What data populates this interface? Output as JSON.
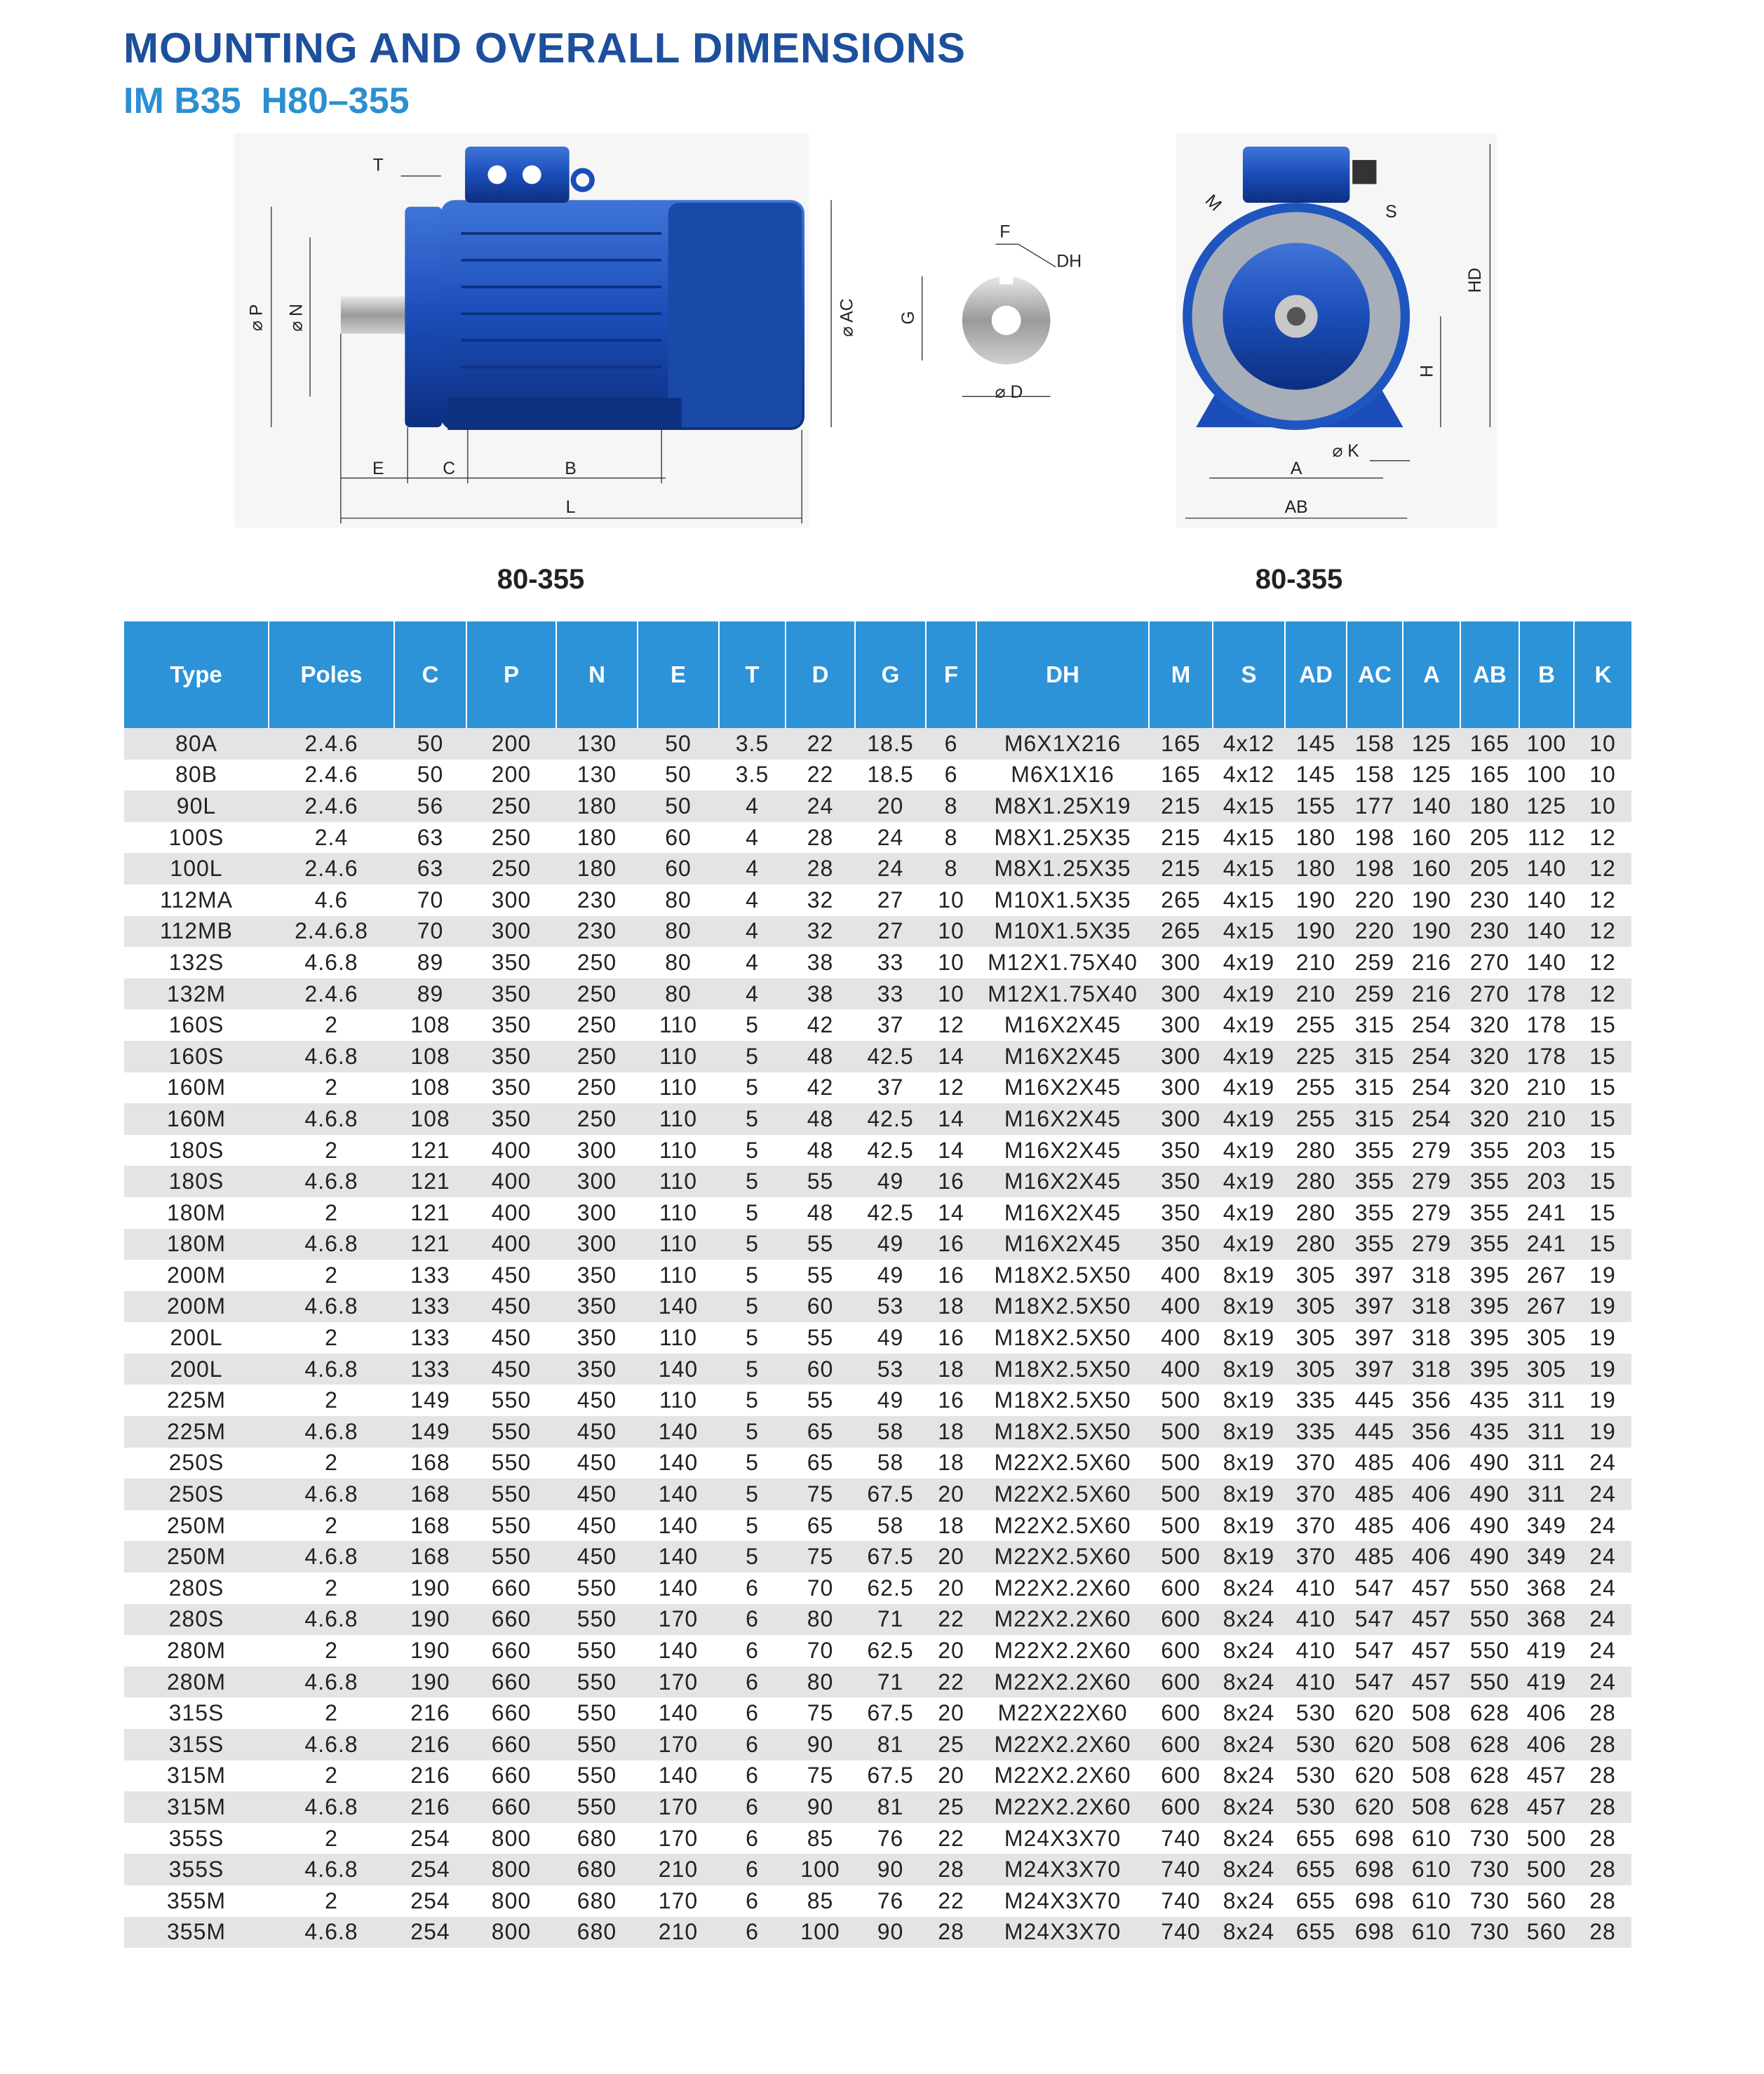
{
  "header": {
    "title": "MOUNTING AND OVERALL DIMENSIONS",
    "subtitle": "IM B35  H80–355"
  },
  "diagrams": {
    "side_view": {
      "labels": [
        "T",
        "⌀ P",
        "⌀ N",
        "E",
        "C",
        "B",
        "L",
        "⌀ AC"
      ],
      "caption": "80-355"
    },
    "shaft_section": {
      "labels": [
        "F",
        "DH",
        "G",
        "⌀ D"
      ]
    },
    "front_view": {
      "labels": [
        "M",
        "S",
        "HD",
        "H",
        "⌀ K",
        "A",
        "AB"
      ],
      "caption": "80-355"
    }
  },
  "table": {
    "columns": [
      "Type",
      "Poles",
      "C",
      "P",
      "N",
      "E",
      "T",
      "D",
      "G",
      "F",
      "DH",
      "M",
      "S",
      "AD",
      "AC",
      "A",
      "AB",
      "B",
      "K"
    ],
    "rows": [
      [
        "80A",
        "2.4.6",
        "50",
        "200",
        "130",
        "50",
        "3.5",
        "22",
        "18.5",
        "6",
        "M6X1X216",
        "165",
        "4x12",
        "145",
        "158",
        "125",
        "165",
        "100",
        "10"
      ],
      [
        "80B",
        "2.4.6",
        "50",
        "200",
        "130",
        "50",
        "3.5",
        "22",
        "18.5",
        "6",
        "M6X1X16",
        "165",
        "4x12",
        "145",
        "158",
        "125",
        "165",
        "100",
        "10"
      ],
      [
        "90L",
        "2.4.6",
        "56",
        "250",
        "180",
        "50",
        "4",
        "24",
        "20",
        "8",
        "M8X1.25X19",
        "215",
        "4x15",
        "155",
        "177",
        "140",
        "180",
        "125",
        "10"
      ],
      [
        "100S",
        "2.4",
        "63",
        "250",
        "180",
        "60",
        "4",
        "28",
        "24",
        "8",
        "M8X1.25X35",
        "215",
        "4x15",
        "180",
        "198",
        "160",
        "205",
        "112",
        "12"
      ],
      [
        "100L",
        "2.4.6",
        "63",
        "250",
        "180",
        "60",
        "4",
        "28",
        "24",
        "8",
        "M8X1.25X35",
        "215",
        "4x15",
        "180",
        "198",
        "160",
        "205",
        "140",
        "12"
      ],
      [
        "112MA",
        "4.6",
        "70",
        "300",
        "230",
        "80",
        "4",
        "32",
        "27",
        "10",
        "M10X1.5X35",
        "265",
        "4x15",
        "190",
        "220",
        "190",
        "230",
        "140",
        "12"
      ],
      [
        "112MB",
        "2.4.6.8",
        "70",
        "300",
        "230",
        "80",
        "4",
        "32",
        "27",
        "10",
        "M10X1.5X35",
        "265",
        "4x15",
        "190",
        "220",
        "190",
        "230",
        "140",
        "12"
      ],
      [
        "132S",
        "4.6.8",
        "89",
        "350",
        "250",
        "80",
        "4",
        "38",
        "33",
        "10",
        "M12X1.75X40",
        "300",
        "4x19",
        "210",
        "259",
        "216",
        "270",
        "140",
        "12"
      ],
      [
        "132M",
        "2.4.6",
        "89",
        "350",
        "250",
        "80",
        "4",
        "38",
        "33",
        "10",
        "M12X1.75X40",
        "300",
        "4x19",
        "210",
        "259",
        "216",
        "270",
        "178",
        "12"
      ],
      [
        "160S",
        "2",
        "108",
        "350",
        "250",
        "110",
        "5",
        "42",
        "37",
        "12",
        "M16X2X45",
        "300",
        "4x19",
        "255",
        "315",
        "254",
        "320",
        "178",
        "15"
      ],
      [
        "160S",
        "4.6.8",
        "108",
        "350",
        "250",
        "110",
        "5",
        "48",
        "42.5",
        "14",
        "M16X2X45",
        "300",
        "4x19",
        "225",
        "315",
        "254",
        "320",
        "178",
        "15"
      ],
      [
        "160M",
        "2",
        "108",
        "350",
        "250",
        "110",
        "5",
        "42",
        "37",
        "12",
        "M16X2X45",
        "300",
        "4x19",
        "255",
        "315",
        "254",
        "320",
        "210",
        "15"
      ],
      [
        "160M",
        "4.6.8",
        "108",
        "350",
        "250",
        "110",
        "5",
        "48",
        "42.5",
        "14",
        "M16X2X45",
        "300",
        "4x19",
        "255",
        "315",
        "254",
        "320",
        "210",
        "15"
      ],
      [
        "180S",
        "2",
        "121",
        "400",
        "300",
        "110",
        "5",
        "48",
        "42.5",
        "14",
        "M16X2X45",
        "350",
        "4x19",
        "280",
        "355",
        "279",
        "355",
        "203",
        "15"
      ],
      [
        "180S",
        "4.6.8",
        "121",
        "400",
        "300",
        "110",
        "5",
        "55",
        "49",
        "16",
        "M16X2X45",
        "350",
        "4x19",
        "280",
        "355",
        "279",
        "355",
        "203",
        "15"
      ],
      [
        "180M",
        "2",
        "121",
        "400",
        "300",
        "110",
        "5",
        "48",
        "42.5",
        "14",
        "M16X2X45",
        "350",
        "4x19",
        "280",
        "355",
        "279",
        "355",
        "241",
        "15"
      ],
      [
        "180M",
        "4.6.8",
        "121",
        "400",
        "300",
        "110",
        "5",
        "55",
        "49",
        "16",
        "M16X2X45",
        "350",
        "4x19",
        "280",
        "355",
        "279",
        "355",
        "241",
        "15"
      ],
      [
        "200M",
        "2",
        "133",
        "450",
        "350",
        "110",
        "5",
        "55",
        "49",
        "16",
        "M18X2.5X50",
        "400",
        "8x19",
        "305",
        "397",
        "318",
        "395",
        "267",
        "19"
      ],
      [
        "200M",
        "4.6.8",
        "133",
        "450",
        "350",
        "140",
        "5",
        "60",
        "53",
        "18",
        "M18X2.5X50",
        "400",
        "8x19",
        "305",
        "397",
        "318",
        "395",
        "267",
        "19"
      ],
      [
        "200L",
        "2",
        "133",
        "450",
        "350",
        "110",
        "5",
        "55",
        "49",
        "16",
        "M18X2.5X50",
        "400",
        "8x19",
        "305",
        "397",
        "318",
        "395",
        "305",
        "19"
      ],
      [
        "200L",
        "4.6.8",
        "133",
        "450",
        "350",
        "140",
        "5",
        "60",
        "53",
        "18",
        "M18X2.5X50",
        "400",
        "8x19",
        "305",
        "397",
        "318",
        "395",
        "305",
        "19"
      ],
      [
        "225M",
        "2",
        "149",
        "550",
        "450",
        "110",
        "5",
        "55",
        "49",
        "16",
        "M18X2.5X50",
        "500",
        "8x19",
        "335",
        "445",
        "356",
        "435",
        "311",
        "19"
      ],
      [
        "225M",
        "4.6.8",
        "149",
        "550",
        "450",
        "140",
        "5",
        "65",
        "58",
        "18",
        "M18X2.5X50",
        "500",
        "8x19",
        "335",
        "445",
        "356",
        "435",
        "311",
        "19"
      ],
      [
        "250S",
        "2",
        "168",
        "550",
        "450",
        "140",
        "5",
        "65",
        "58",
        "18",
        "M22X2.5X60",
        "500",
        "8x19",
        "370",
        "485",
        "406",
        "490",
        "311",
        "24"
      ],
      [
        "250S",
        "4.6.8",
        "168",
        "550",
        "450",
        "140",
        "5",
        "75",
        "67.5",
        "20",
        "M22X2.5X60",
        "500",
        "8x19",
        "370",
        "485",
        "406",
        "490",
        "311",
        "24"
      ],
      [
        "250M",
        "2",
        "168",
        "550",
        "450",
        "140",
        "5",
        "65",
        "58",
        "18",
        "M22X2.5X60",
        "500",
        "8x19",
        "370",
        "485",
        "406",
        "490",
        "349",
        "24"
      ],
      [
        "250M",
        "4.6.8",
        "168",
        "550",
        "450",
        "140",
        "5",
        "75",
        "67.5",
        "20",
        "M22X2.5X60",
        "500",
        "8x19",
        "370",
        "485",
        "406",
        "490",
        "349",
        "24"
      ],
      [
        "280S",
        "2",
        "190",
        "660",
        "550",
        "140",
        "6",
        "70",
        "62.5",
        "20",
        "M22X2.2X60",
        "600",
        "8x24",
        "410",
        "547",
        "457",
        "550",
        "368",
        "24"
      ],
      [
        "280S",
        "4.6.8",
        "190",
        "660",
        "550",
        "170",
        "6",
        "80",
        "71",
        "22",
        "M22X2.2X60",
        "600",
        "8x24",
        "410",
        "547",
        "457",
        "550",
        "368",
        "24"
      ],
      [
        "280M",
        "2",
        "190",
        "660",
        "550",
        "140",
        "6",
        "70",
        "62.5",
        "20",
        "M22X2.2X60",
        "600",
        "8x24",
        "410",
        "547",
        "457",
        "550",
        "419",
        "24"
      ],
      [
        "280M",
        "4.6.8",
        "190",
        "660",
        "550",
        "170",
        "6",
        "80",
        "71",
        "22",
        "M22X2.2X60",
        "600",
        "8x24",
        "410",
        "547",
        "457",
        "550",
        "419",
        "24"
      ],
      [
        "315S",
        "2",
        "216",
        "660",
        "550",
        "140",
        "6",
        "75",
        "67.5",
        "20",
        "M22X22X60",
        "600",
        "8x24",
        "530",
        "620",
        "508",
        "628",
        "406",
        "28"
      ],
      [
        "315S",
        "4.6.8",
        "216",
        "660",
        "550",
        "170",
        "6",
        "90",
        "81",
        "25",
        "M22X2.2X60",
        "600",
        "8x24",
        "530",
        "620",
        "508",
        "628",
        "406",
        "28"
      ],
      [
        "315M",
        "2",
        "216",
        "660",
        "550",
        "140",
        "6",
        "75",
        "67.5",
        "20",
        "M22X2.2X60",
        "600",
        "8x24",
        "530",
        "620",
        "508",
        "628",
        "457",
        "28"
      ],
      [
        "315M",
        "4.6.8",
        "216",
        "660",
        "550",
        "170",
        "6",
        "90",
        "81",
        "25",
        "M22X2.2X60",
        "600",
        "8x24",
        "530",
        "620",
        "508",
        "628",
        "457",
        "28"
      ],
      [
        "355S",
        "2",
        "254",
        "800",
        "680",
        "170",
        "6",
        "85",
        "76",
        "22",
        "M24X3X70",
        "740",
        "8x24",
        "655",
        "698",
        "610",
        "730",
        "500",
        "28"
      ],
      [
        "355S",
        "4.6.8",
        "254",
        "800",
        "680",
        "210",
        "6",
        "100",
        "90",
        "28",
        "M24X3X70",
        "740",
        "8x24",
        "655",
        "698",
        "610",
        "730",
        "500",
        "28"
      ],
      [
        "355M",
        "2",
        "254",
        "800",
        "680",
        "170",
        "6",
        "85",
        "76",
        "22",
        "M24X3X70",
        "740",
        "8x24",
        "655",
        "698",
        "610",
        "730",
        "560",
        "28"
      ],
      [
        "355M",
        "4.6.8",
        "254",
        "800",
        "680",
        "210",
        "6",
        "100",
        "90",
        "28",
        "M24X3X70",
        "740",
        "8x24",
        "655",
        "698",
        "610",
        "730",
        "560",
        "28"
      ]
    ]
  }
}
